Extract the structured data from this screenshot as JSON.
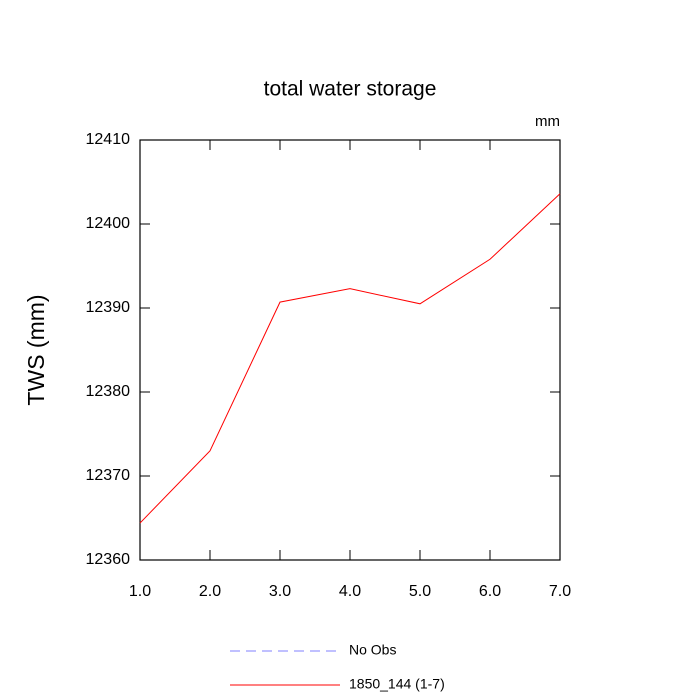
{
  "chart_data": {
    "type": "line",
    "title": "total water storage",
    "units_label": "mm",
    "y_label": "TWS  (mm)",
    "x": [
      1,
      2,
      3,
      4,
      5,
      6,
      7
    ],
    "xlim": [
      1,
      7
    ],
    "xticks": [
      {
        "value": 1,
        "label": "1.0"
      },
      {
        "value": 2,
        "label": "2.0"
      },
      {
        "value": 3,
        "label": "3.0"
      },
      {
        "value": 4,
        "label": "4.0"
      },
      {
        "value": 5,
        "label": "5.0"
      },
      {
        "value": 6,
        "label": "6.0"
      },
      {
        "value": 7,
        "label": "7.0"
      }
    ],
    "ylim": [
      12360,
      12410
    ],
    "yticks": [
      12360,
      12370,
      12380,
      12390,
      12400,
      12410
    ],
    "series": [
      {
        "name": "No Obs",
        "color": "#8080ff",
        "dash": true,
        "values": [
          null,
          null,
          null,
          null,
          null,
          null,
          null
        ]
      },
      {
        "name": "1850_144 (1-7)",
        "color": "#ff0000",
        "dash": false,
        "values": [
          12364.4,
          12373.0,
          12390.7,
          12392.3,
          12390.5,
          12395.8,
          12403.6
        ]
      }
    ]
  }
}
